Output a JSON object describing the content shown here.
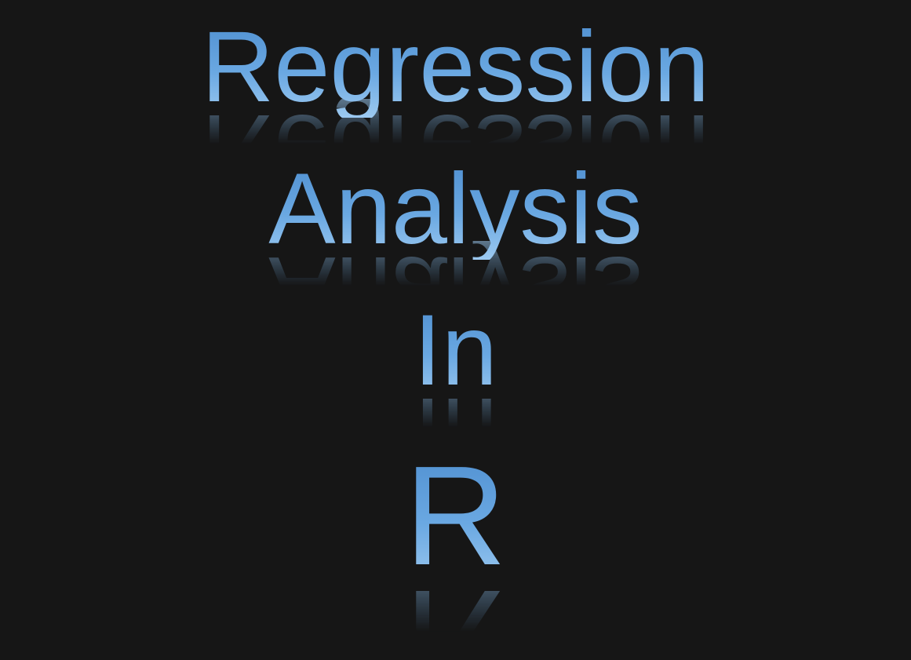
{
  "slide": {
    "title_lines": [
      "Regression",
      "Analysis",
      "In",
      "R"
    ],
    "background_color": "#161616",
    "text_color": "#5b9bd5"
  }
}
